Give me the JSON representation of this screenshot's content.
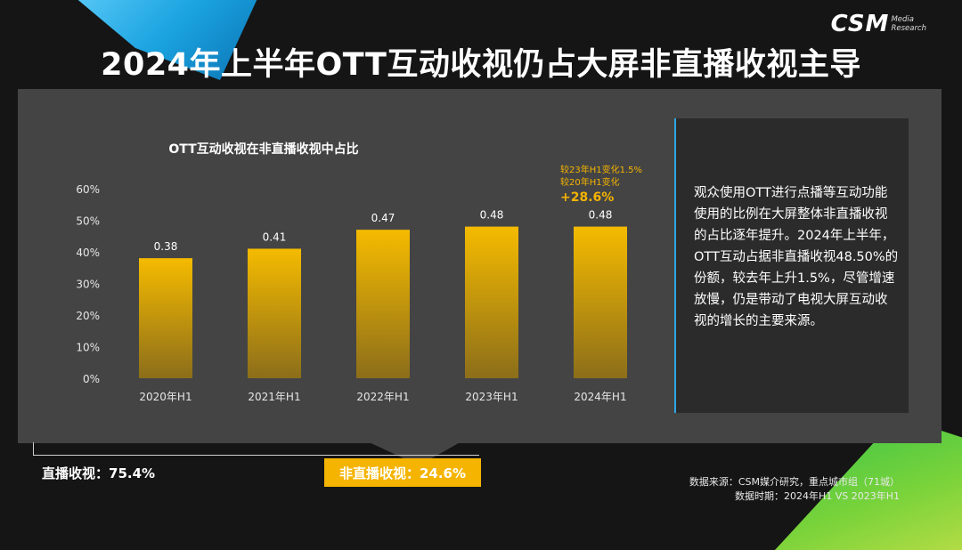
{
  "header": {
    "title": "2024年上半年OTT互动收视仍占大屏非直播收视主导",
    "logo_main": "CSM",
    "logo_sub_1": "Media",
    "logo_sub_2": "Research"
  },
  "chart_data": {
    "type": "bar",
    "title": "OTT互动收视在非直播收视中占比",
    "categories": [
      "2020年H1",
      "2021年H1",
      "2022年H1",
      "2023年H1",
      "2024年H1"
    ],
    "values": [
      0.38,
      0.41,
      0.47,
      0.48,
      0.48
    ],
    "value_labels": [
      "0.38",
      "0.41",
      "0.47",
      "0.48",
      "0.48"
    ],
    "y_ticks": [
      "0%",
      "10%",
      "20%",
      "30%",
      "40%",
      "50%",
      "60%"
    ],
    "ylim": [
      0,
      0.6
    ],
    "bar_color_top": "#f5bb00",
    "bar_color_bottom": "#8c6e1a",
    "annotation": {
      "line1": "较23年H1变化1.5%",
      "line2": "较20年H1变化",
      "highlight": "+28.6%",
      "color": "#f5b400"
    }
  },
  "side_note": {
    "text": "观众使用OTT进行点播等互动功能使用的比例在大屏整体非直播收视的占比逐年提升。2024年上半年，OTT互动占据非直播收视48.50%的份额，较去年上升1.5%，尽管增速放慢，仍是带动了电视大屏互动收视的增长的主要来源。"
  },
  "shares": {
    "live_label": "直播收视：75.4%",
    "nonlive_label": "非直播收视：24.6%"
  },
  "source": {
    "line1": "数据来源：CSM媒介研究，重点城市组（71城）",
    "line2": "数据时期：2024年H1 VS 2023年H1"
  }
}
